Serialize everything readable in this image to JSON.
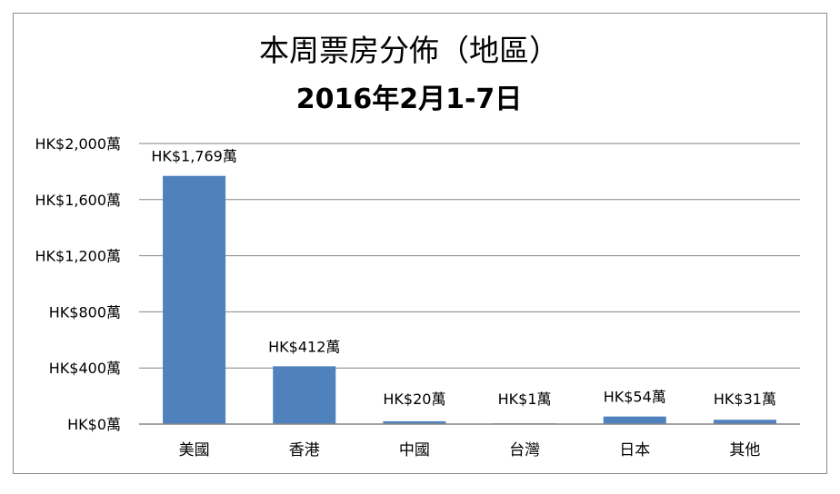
{
  "chart_data": {
    "type": "bar",
    "title": "本周票房分佈（地區）",
    "subtitle": "2016年2月1-7日",
    "categories": [
      "美國",
      "香港",
      "中國",
      "台灣",
      "日本",
      "其他"
    ],
    "values": [
      1769,
      412,
      20,
      1,
      54,
      31
    ],
    "data_labels": [
      "HK$1,769萬",
      "HK$412萬",
      "HK$20萬",
      "HK$1萬",
      "HK$54萬",
      "HK$31萬"
    ],
    "y_ticks": [
      0,
      400,
      800,
      1200,
      1600,
      2000
    ],
    "y_tick_labels": [
      "HK$0萬",
      "HK$400萬",
      "HK$800萬",
      "HK$1,200萬",
      "HK$1,600萬",
      "HK$2,000萬"
    ],
    "ylim": [
      0,
      2000
    ],
    "grid": true,
    "legend": "none",
    "colors": {
      "bar": "#4f81bd",
      "grid": "#868686",
      "axis": "#868686",
      "border": "#8c8c8c"
    }
  }
}
